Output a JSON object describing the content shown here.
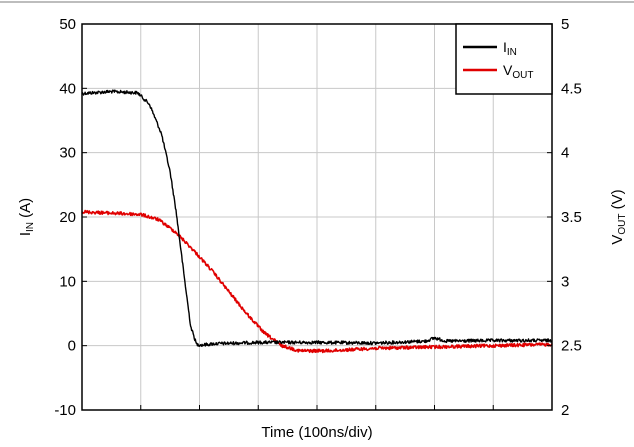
{
  "chart_data": {
    "type": "line",
    "xlabel": "Time (100ns/div)",
    "x_divisions": 8,
    "y_left": {
      "label_main": "I",
      "label_sub": "IN",
      "label_unit": " (A)",
      "min": -10,
      "max": 50,
      "ticks": [
        "50",
        "40",
        "30",
        "20",
        "10",
        "0",
        "-10"
      ]
    },
    "y_right": {
      "label_main": "V",
      "label_sub": "OUT",
      "label_unit": " (V)",
      "min": 2,
      "max": 5,
      "ticks": [
        "5",
        "4.5",
        "4",
        "3.5",
        "3",
        "2.5",
        "2"
      ]
    },
    "grid": true,
    "legend_position": "top-right",
    "series": [
      {
        "name": "IIN",
        "name_main": "I",
        "name_sub": "IN",
        "color": "#000000",
        "axis": "left",
        "x": [
          0,
          0.5,
          0.95,
          1.15,
          1.35,
          1.5,
          1.6,
          1.75,
          1.85,
          1.95,
          2.05,
          2.25,
          3,
          4,
          5,
          5.85,
          6,
          6.2,
          7,
          8
        ],
        "y": [
          39.2,
          39.5,
          39.3,
          37.5,
          33,
          27,
          21,
          10,
          3,
          0.2,
          0.1,
          0.3,
          0.5,
          0.5,
          0.4,
          0.7,
          1.2,
          0.7,
          0.8,
          0.8
        ]
      },
      {
        "name": "VOUT",
        "name_main": "V",
        "name_sub": "OUT",
        "color": "#e00000",
        "axis": "right",
        "x": [
          0,
          0.5,
          1.0,
          1.3,
          1.6,
          1.9,
          2.2,
          2.5,
          2.8,
          3.1,
          3.4,
          3.7,
          4.2,
          5,
          6,
          7,
          8
        ],
        "y": [
          3.54,
          3.53,
          3.52,
          3.48,
          3.38,
          3.24,
          3.09,
          2.92,
          2.75,
          2.6,
          2.5,
          2.46,
          2.46,
          2.48,
          2.49,
          2.5,
          2.51
        ]
      }
    ]
  }
}
